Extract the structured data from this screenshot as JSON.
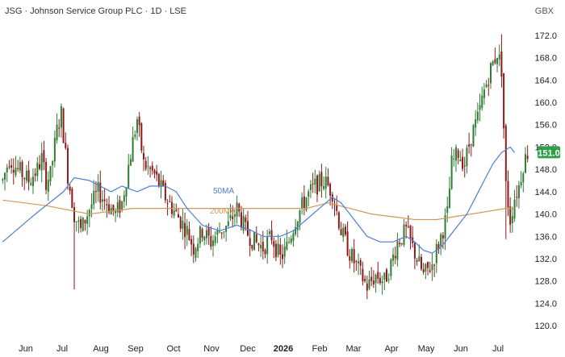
{
  "header": {
    "title": "JSG · Johnson Service Group PLC · 1D · LSE",
    "currency": "GBX"
  },
  "chart_data": {
    "type": "candlestick",
    "ylim": [
      118,
      174
    ],
    "y_ticks": [
      "172.0",
      "168.0",
      "164.0",
      "160.0",
      "156.0",
      "152.0",
      "148.0",
      "144.0",
      "140.0",
      "136.0",
      "132.0",
      "128.0",
      "124.0",
      "120.0"
    ],
    "x_ticks": [
      {
        "label": "Jun",
        "bold": false
      },
      {
        "label": "Jul",
        "bold": false
      },
      {
        "label": "Aug",
        "bold": false
      },
      {
        "label": "Sep",
        "bold": false
      },
      {
        "label": "Oct",
        "bold": false
      },
      {
        "label": "Nov",
        "bold": false
      },
      {
        "label": "Dec",
        "bold": false
      },
      {
        "label": "2026",
        "bold": true
      },
      {
        "label": "Feb",
        "bold": false
      },
      {
        "label": "Mar",
        "bold": false
      },
      {
        "label": "Apr",
        "bold": false
      },
      {
        "label": "May",
        "bold": false
      },
      {
        "label": "Jun",
        "bold": false
      },
      {
        "label": "Jul",
        "bold": false
      }
    ],
    "last_price": "151.0",
    "colors": {
      "up": "#2e7d32",
      "down": "#8b1a1a",
      "ma50": "#4a7fd4",
      "ma200": "#d19a5a",
      "price_tag": "#2e9e4a"
    },
    "ma_labels": {
      "ma50": "50MA",
      "ma200": "200MA"
    },
    "price_path": [
      [
        0,
        146
      ],
      [
        3,
        150
      ],
      [
        7,
        148
      ],
      [
        12,
        146
      ],
      [
        16,
        148
      ],
      [
        18,
        150
      ],
      [
        20,
        146
      ],
      [
        22,
        147
      ],
      [
        25,
        155
      ],
      [
        27,
        158
      ],
      [
        30,
        147
      ],
      [
        33,
        140
      ],
      [
        36,
        137
      ],
      [
        40,
        141
      ],
      [
        44,
        144
      ],
      [
        48,
        142
      ],
      [
        52,
        140
      ],
      [
        55,
        142
      ],
      [
        60,
        153
      ],
      [
        62,
        157
      ],
      [
        65,
        149
      ],
      [
        70,
        147
      ],
      [
        75,
        143
      ],
      [
        80,
        140
      ],
      [
        85,
        137
      ],
      [
        88,
        134
      ],
      [
        92,
        137
      ],
      [
        96,
        135
      ],
      [
        100,
        137
      ],
      [
        104,
        138
      ],
      [
        108,
        141
      ],
      [
        112,
        137
      ],
      [
        116,
        135
      ],
      [
        120,
        134
      ],
      [
        124,
        136
      ],
      [
        128,
        132
      ],
      [
        131,
        134
      ],
      [
        135,
        139
      ],
      [
        140,
        143
      ],
      [
        144,
        145
      ],
      [
        148,
        146
      ],
      [
        152,
        144
      ],
      [
        156,
        137
      ],
      [
        160,
        133
      ],
      [
        164,
        130
      ],
      [
        168,
        127
      ],
      [
        172,
        129
      ],
      [
        176,
        128
      ],
      [
        179,
        131
      ],
      [
        182,
        135
      ],
      [
        186,
        137
      ],
      [
        190,
        133
      ],
      [
        194,
        129
      ],
      [
        198,
        131
      ],
      [
        202,
        136
      ],
      [
        205,
        140
      ],
      [
        207,
        149
      ],
      [
        210,
        151
      ],
      [
        213,
        149
      ],
      [
        216,
        154
      ],
      [
        219,
        157
      ],
      [
        222,
        162
      ],
      [
        225,
        166
      ],
      [
        228,
        169
      ],
      [
        230,
        166
      ],
      [
        232,
        145
      ],
      [
        234,
        139
      ],
      [
        236,
        143
      ],
      [
        238,
        145
      ],
      [
        240,
        149
      ],
      [
        242,
        151
      ]
    ],
    "ma50": [
      [
        0,
        135
      ],
      [
        15,
        140
      ],
      [
        28,
        144
      ],
      [
        33,
        146.5
      ],
      [
        40,
        146
      ],
      [
        50,
        144
      ],
      [
        55,
        145
      ],
      [
        62,
        144
      ],
      [
        68,
        145
      ],
      [
        75,
        145
      ],
      [
        80,
        144
      ],
      [
        85,
        141
      ],
      [
        92,
        138
      ],
      [
        100,
        137
      ],
      [
        108,
        138
      ],
      [
        115,
        137
      ],
      [
        120,
        136
      ],
      [
        128,
        136
      ],
      [
        134,
        137
      ],
      [
        140,
        139
      ],
      [
        146,
        141
      ],
      [
        152,
        143
      ],
      [
        156,
        142
      ],
      [
        162,
        139
      ],
      [
        168,
        136
      ],
      [
        174,
        135
      ],
      [
        180,
        135
      ],
      [
        186,
        136
      ],
      [
        190,
        135
      ],
      [
        194,
        133.5
      ],
      [
        198,
        133
      ],
      [
        202,
        134
      ],
      [
        206,
        136
      ],
      [
        210,
        138
      ],
      [
        214,
        140
      ],
      [
        218,
        143
      ],
      [
        222,
        146
      ],
      [
        226,
        149
      ],
      [
        230,
        151
      ],
      [
        234,
        152
      ],
      [
        236,
        151
      ]
    ],
    "ma200": [
      [
        0,
        142.5
      ],
      [
        20,
        141.5
      ],
      [
        40,
        140
      ],
      [
        60,
        141
      ],
      [
        80,
        141
      ],
      [
        100,
        141
      ],
      [
        120,
        141
      ],
      [
        140,
        141
      ],
      [
        150,
        142
      ],
      [
        160,
        141
      ],
      [
        170,
        140
      ],
      [
        180,
        139.5
      ],
      [
        190,
        139
      ],
      [
        200,
        139
      ],
      [
        208,
        139.5
      ],
      [
        216,
        140
      ],
      [
        224,
        140.5
      ],
      [
        232,
        141
      ],
      [
        236,
        141
      ]
    ]
  }
}
